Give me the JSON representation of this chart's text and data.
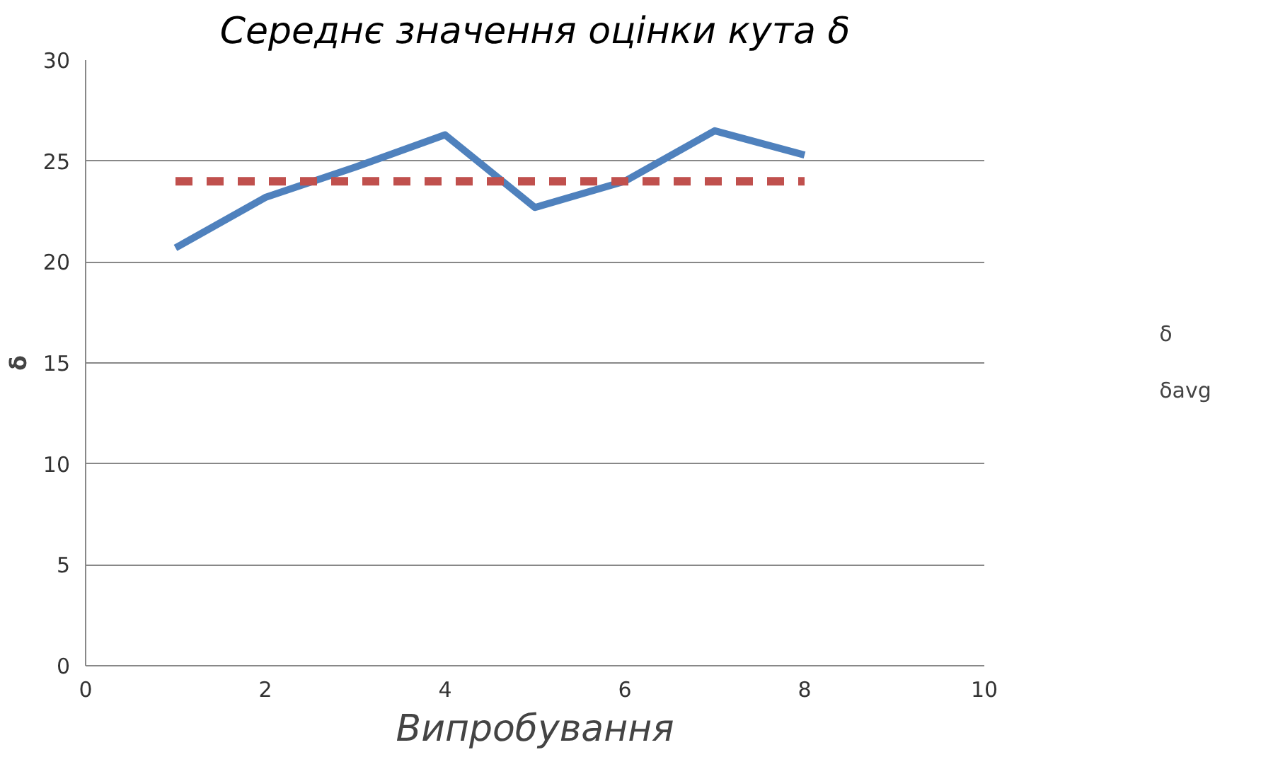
{
  "chart_data": {
    "type": "line",
    "title": "Середнє значення оцінки кута δ",
    "xlabel": "Випробування",
    "ylabel": "δ",
    "x": [
      1,
      2,
      3,
      4,
      5,
      6,
      7,
      8
    ],
    "series": [
      {
        "name": "δ",
        "color": "#4f81bd",
        "values": [
          20.7,
          23.2,
          24.7,
          26.3,
          22.7,
          24.0,
          26.5,
          25.3
        ]
      },
      {
        "name": "δavg",
        "color": "#c0504d",
        "values": [
          24,
          24,
          24,
          24,
          24,
          24,
          24,
          24
        ],
        "line_style": "dashed"
      }
    ],
    "xlim": [
      0,
      10
    ],
    "xticks": [
      0,
      2,
      4,
      6,
      8,
      10
    ],
    "ylim": [
      0,
      30
    ],
    "yticks": [
      0,
      5,
      10,
      15,
      20,
      25,
      30
    ],
    "grid": "y",
    "legend": "right",
    "marker": "none",
    "line_style": "solid"
  }
}
